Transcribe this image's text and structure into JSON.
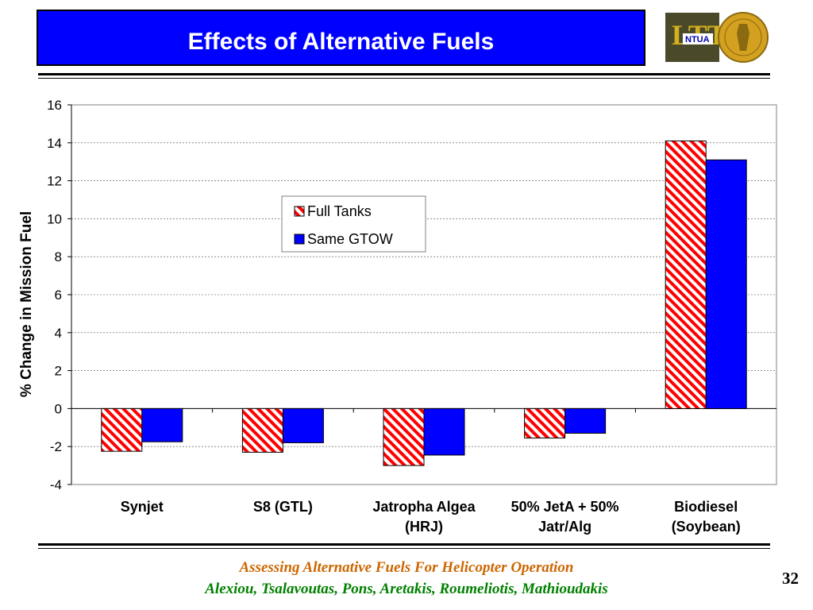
{
  "slide": {
    "title": "Effects of Alternative Fuels",
    "logo": {
      "text_main": "LTT",
      "text_sub": "NTUA",
      "icon": "seal-icon"
    },
    "footer": {
      "line1": "Assessing Alternative Fuels For Helicopter Operation",
      "line2": "Alexiou, Tsalavoutas, Pons, Aretakis, Roumeliotis, Mathioudakis"
    },
    "page_number": "32",
    "colors": {
      "title_bg": "#0000ff",
      "full_tanks": "#ff0000",
      "same_gtow": "#0000ff",
      "footer1": "#cc6600",
      "footer2": "#008000"
    }
  },
  "chart_data": {
    "type": "bar",
    "categories": [
      [
        "Synjet"
      ],
      [
        "S8 (GTL)"
      ],
      [
        "Jatropha Algea",
        "(HRJ)"
      ],
      [
        "50% JetA + 50%",
        "Jatr/Alg"
      ],
      [
        "Biodiesel",
        "(Soybean)"
      ]
    ],
    "series": [
      {
        "name": "Full Tanks",
        "values": [
          -2.25,
          -2.3,
          -3.0,
          -1.55,
          14.1
        ],
        "color": "#ff0000",
        "pattern": "diagonal-stripes"
      },
      {
        "name": "Same GTOW",
        "values": [
          -1.75,
          -1.8,
          -2.45,
          -1.3,
          13.1
        ],
        "color": "#0000ff",
        "pattern": "solid"
      }
    ],
    "title": "",
    "xlabel": "",
    "ylabel": "% Change in Mission Fuel",
    "ylim": [
      -4,
      16
    ],
    "yticks": [
      "-4",
      "-2",
      "0",
      "2",
      "4",
      "6",
      "8",
      "10",
      "12",
      "14",
      "16"
    ],
    "grid": true,
    "legend_position": "center-left"
  }
}
